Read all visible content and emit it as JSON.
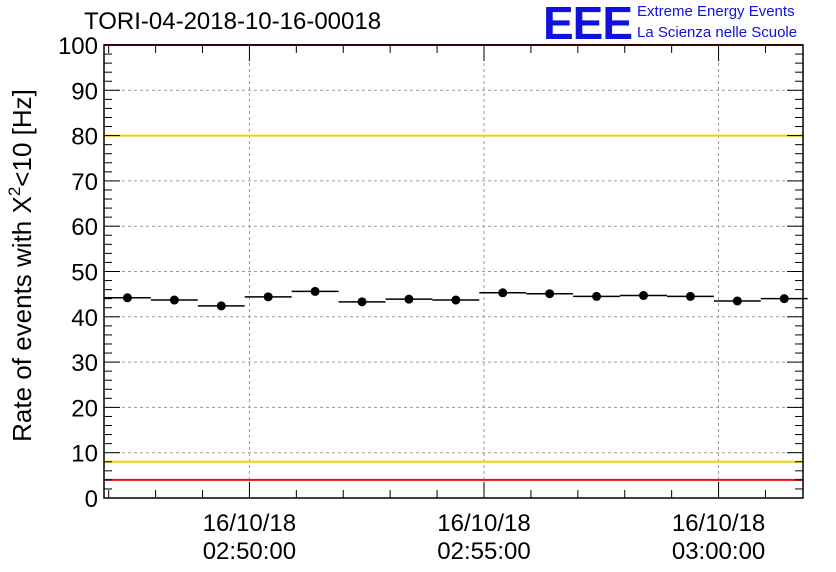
{
  "header": {
    "run_title": "TORI-04-2018-10-16-00018"
  },
  "logo": {
    "mark": "EEE",
    "line1": "Extreme Energy Events",
    "line2": "La Scienza nelle Scuole"
  },
  "chart_data": {
    "type": "scatter",
    "title": "TORI-04-2018-10-16-00018",
    "ylabel_pre": "Rate of events with X",
    "ylabel_sup": "2",
    "ylabel_post": "<10 [Hz]",
    "xlabel": "",
    "ylim": [
      0,
      100
    ],
    "y_ticks": [
      "0",
      "10",
      "20",
      "30",
      "40",
      "50",
      "60",
      "70",
      "80",
      "90",
      "100"
    ],
    "x_range_minutes": [
      -3.1,
      11.8
    ],
    "x_ticks": [
      {
        "minute": 0,
        "date": "16/10/18",
        "time": "02:50:00"
      },
      {
        "minute": 5,
        "date": "16/10/18",
        "time": "02:55:00"
      },
      {
        "minute": 10,
        "date": "16/10/18",
        "time": "03:00:00"
      }
    ],
    "grid": true,
    "reference_lines": [
      {
        "y": 100,
        "color": "#e81010"
      },
      {
        "y": 80,
        "color": "#f0d000"
      },
      {
        "y": 8,
        "color": "#f0d000"
      },
      {
        "y": 4,
        "color": "#e81010"
      }
    ],
    "bin_width_minutes": 1,
    "series": [
      {
        "name": "rate",
        "x": [
          -2.6,
          -1.6,
          -0.6,
          0.4,
          1.4,
          2.4,
          3.4,
          4.4,
          5.4,
          6.4,
          7.4,
          8.4,
          9.4,
          10.4,
          11.4
        ],
        "values": [
          44.2,
          43.7,
          42.4,
          44.4,
          45.6,
          43.3,
          43.9,
          43.7,
          45.3,
          45.1,
          44.5,
          44.7,
          44.5,
          43.5,
          44.0
        ]
      }
    ],
    "colors": {
      "grid": "#9a9a9a",
      "marker": "#000000"
    }
  }
}
